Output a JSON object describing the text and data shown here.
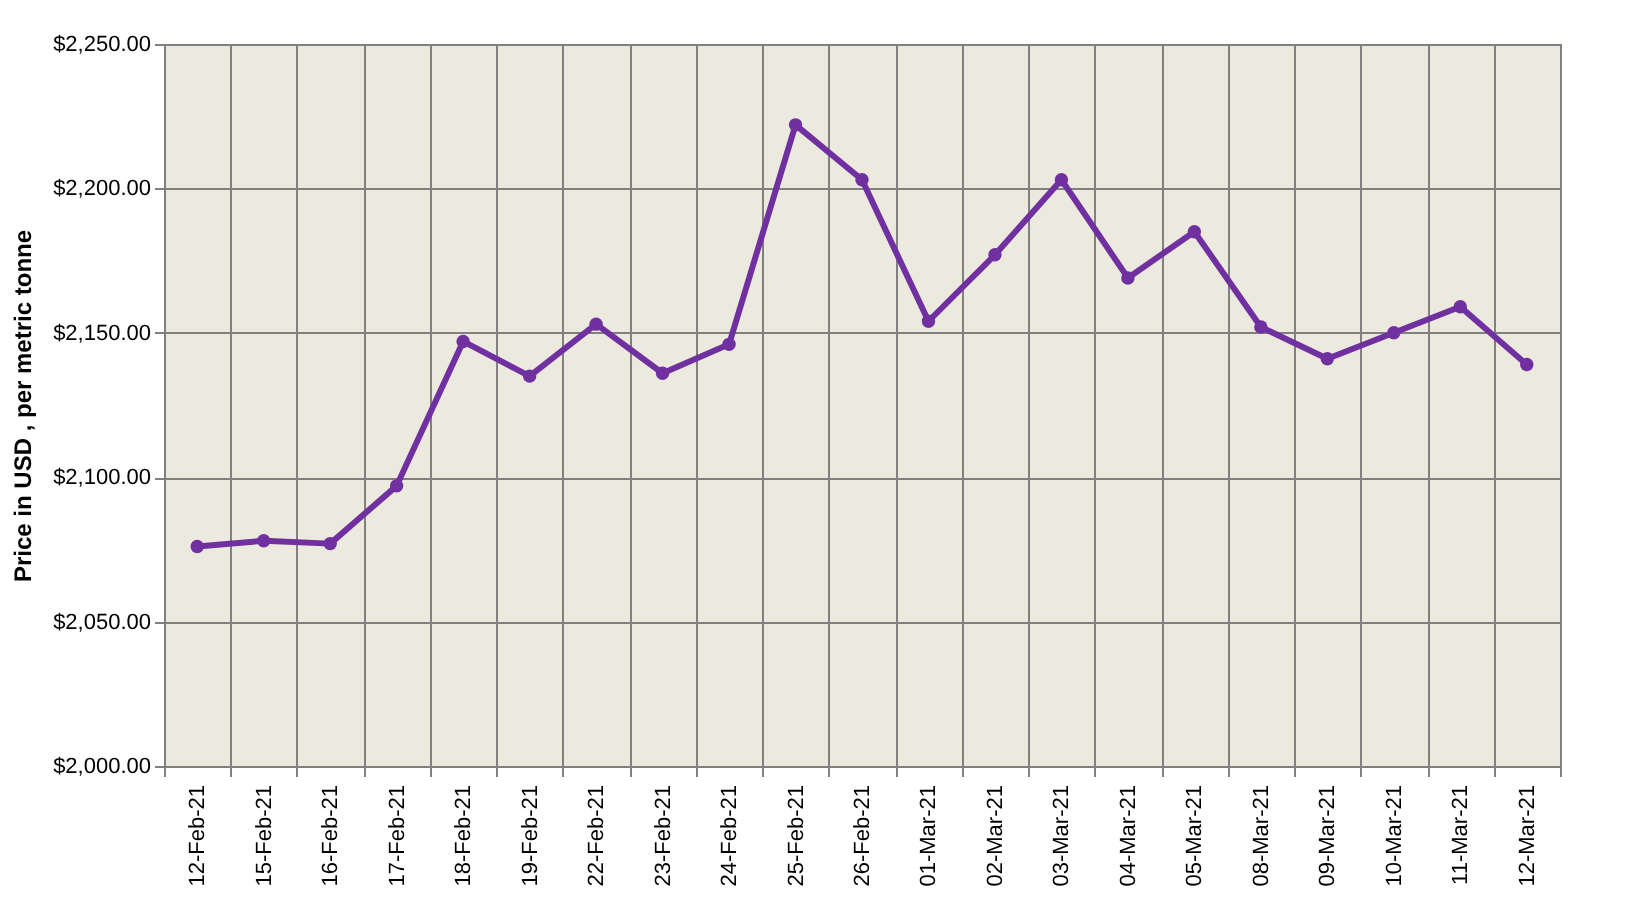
{
  "chart_data": {
    "type": "line",
    "ylabel": "Price in USD , per metric tonne",
    "categories": [
      "12-Feb-21",
      "15-Feb-21",
      "16-Feb-21",
      "17-Feb-21",
      "18-Feb-21",
      "19-Feb-21",
      "22-Feb-21",
      "23-Feb-21",
      "24-Feb-21",
      "25-Feb-21",
      "26-Feb-21",
      "01-Mar-21",
      "02-Mar-21",
      "03-Mar-21",
      "04-Mar-21",
      "05-Mar-21",
      "08-Mar-21",
      "09-Mar-21",
      "10-Mar-21",
      "11-Mar-21",
      "12-Mar-21"
    ],
    "series": [
      {
        "color": "#7030a0",
        "values": [
          2076,
          2078,
          2077,
          2097,
          2147,
          2135,
          2153,
          2136,
          2146,
          2222,
          2203,
          2154,
          2177,
          2203,
          2169,
          2185,
          2152,
          2141,
          2150,
          2159,
          2139
        ]
      }
    ],
    "ylim": [
      2000,
      2250
    ],
    "yticks": [
      {
        "value": 2000,
        "label": "$2,000.00"
      },
      {
        "value": 2050,
        "label": "$2,050.00"
      },
      {
        "value": 2100,
        "label": "$2,100.00"
      },
      {
        "value": 2150,
        "label": "$2,150.00"
      },
      {
        "value": 2200,
        "label": "$2,200.00"
      },
      {
        "value": 2250,
        "label": "$2,250.00"
      }
    ],
    "grid": true,
    "marker": "circle",
    "line_style": "solid"
  }
}
